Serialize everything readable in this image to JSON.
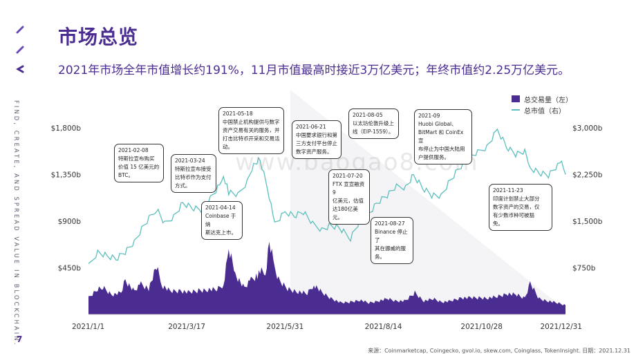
{
  "header": {
    "title": "市场总览",
    "subtitle": "2021年市场全年市值增长约191%，11月市值最高时接近3万亿美元；年终市值约2.25万亿美元。"
  },
  "sidebar": {
    "tagline": "FIND, CREATE, AND SPREAD VALUE IN BLOCKCHAIN."
  },
  "footer": {
    "page_number": "7",
    "source": "来源：Coinmarketcap, Coingecko, gvol.io, skew.com, Coinglass, TokenInsight. 日期：2021.12.31"
  },
  "watermark": "www.baogao8.com",
  "colors": {
    "brand": "#4b2c91",
    "volume": "#4b2c91",
    "market_cap": "#5cbfbd"
  },
  "chart_data": {
    "type": "line",
    "x_tick_labels": [
      "2021/1/1",
      "2021/3/17",
      "2021/5/31",
      "2021/8/14",
      "2021/10/28",
      "2021/12/31"
    ],
    "y_left_ticks": [
      "$450b",
      "$900b",
      "$1,350b",
      "$1,800b"
    ],
    "y_right_ticks": [
      "$750b",
      "$1,500b",
      "$2,250b",
      "$3,000b"
    ],
    "y_left_lim": [
      0,
      2000
    ],
    "y_right_lim": [
      0,
      3333
    ],
    "legend": [
      "总交易量（左）",
      "总市值（右）"
    ],
    "legend_position": "top-right",
    "grid": false,
    "series": [
      {
        "name": "总市值（右）",
        "axis": "right",
        "type": "line",
        "points": [
          [
            "2021-01-01",
            770
          ],
          [
            "2021-01-08",
            1010
          ],
          [
            "2021-01-15",
            950
          ],
          [
            "2021-01-22",
            900
          ],
          [
            "2021-01-29",
            1010
          ],
          [
            "2021-02-05",
            1160
          ],
          [
            "2021-02-12",
            1420
          ],
          [
            "2021-02-19",
            1620
          ],
          [
            "2021-02-22",
            1690
          ],
          [
            "2021-02-28",
            1450
          ],
          [
            "2021-03-07",
            1580
          ],
          [
            "2021-03-14",
            1800
          ],
          [
            "2021-03-21",
            1720
          ],
          [
            "2021-03-28",
            1690
          ],
          [
            "2021-04-04",
            1870
          ],
          [
            "2021-04-11",
            2070
          ],
          [
            "2021-04-14",
            2230
          ],
          [
            "2021-04-18",
            1960
          ],
          [
            "2021-04-25",
            1910
          ],
          [
            "2021-05-02",
            2140
          ],
          [
            "2021-05-07",
            2430
          ],
          [
            "2021-05-12",
            2500
          ],
          [
            "2021-05-19",
            1900
          ],
          [
            "2021-05-23",
            1450
          ],
          [
            "2021-05-31",
            1640
          ],
          [
            "2021-06-07",
            1580
          ],
          [
            "2021-06-14",
            1640
          ],
          [
            "2021-06-21",
            1450
          ],
          [
            "2021-06-28",
            1370
          ],
          [
            "2021-07-05",
            1440
          ],
          [
            "2021-07-12",
            1390
          ],
          [
            "2021-07-20",
            1230
          ],
          [
            "2021-07-27",
            1500
          ],
          [
            "2021-08-03",
            1620
          ],
          [
            "2021-08-10",
            1800
          ],
          [
            "2021-08-17",
            1910
          ],
          [
            "2021-08-24",
            2050
          ],
          [
            "2021-08-31",
            2050
          ],
          [
            "2021-09-06",
            2250
          ],
          [
            "2021-09-13",
            2040
          ],
          [
            "2021-09-20",
            1920
          ],
          [
            "2021-09-27",
            1900
          ],
          [
            "2021-10-04",
            2150
          ],
          [
            "2021-10-11",
            2350
          ],
          [
            "2021-10-18",
            2500
          ],
          [
            "2021-10-25",
            2600
          ],
          [
            "2021-11-01",
            2700
          ],
          [
            "2021-11-09",
            2980
          ],
          [
            "2021-11-16",
            2700
          ],
          [
            "2021-11-23",
            2580
          ],
          [
            "2021-11-30",
            2620
          ],
          [
            "2021-12-04",
            2350
          ],
          [
            "2021-12-11",
            2270
          ],
          [
            "2021-12-18",
            2230
          ],
          [
            "2021-12-25",
            2380
          ],
          [
            "2021-12-28",
            2440
          ],
          [
            "2021-12-31",
            2250
          ]
        ]
      },
      {
        "name": "总交易量（左）",
        "axis": "left",
        "type": "area",
        "points": [
          [
            "2021-01-01",
            160
          ],
          [
            "2021-01-08",
            250
          ],
          [
            "2021-01-12",
            260
          ],
          [
            "2021-01-19",
            190
          ],
          [
            "2021-01-26",
            210
          ],
          [
            "2021-01-29",
            330
          ],
          [
            "2021-02-05",
            220
          ],
          [
            "2021-02-10",
            290
          ],
          [
            "2021-02-16",
            250
          ],
          [
            "2021-02-22",
            460
          ],
          [
            "2021-02-26",
            280
          ],
          [
            "2021-03-05",
            220
          ],
          [
            "2021-03-12",
            230
          ],
          [
            "2021-03-19",
            210
          ],
          [
            "2021-03-26",
            230
          ],
          [
            "2021-04-02",
            240
          ],
          [
            "2021-04-09",
            240
          ],
          [
            "2021-04-14",
            290
          ],
          [
            "2021-04-18",
            630
          ],
          [
            "2021-04-23",
            390
          ],
          [
            "2021-04-30",
            250
          ],
          [
            "2021-05-05",
            330
          ],
          [
            "2021-05-10",
            380
          ],
          [
            "2021-05-12",
            420
          ],
          [
            "2021-05-16",
            390
          ],
          [
            "2021-05-19",
            700
          ],
          [
            "2021-05-23",
            450
          ],
          [
            "2021-05-27",
            310
          ],
          [
            "2021-06-03",
            240
          ],
          [
            "2021-06-10",
            220
          ],
          [
            "2021-06-17",
            200
          ],
          [
            "2021-06-22",
            290
          ],
          [
            "2021-06-29",
            200
          ],
          [
            "2021-07-06",
            150
          ],
          [
            "2021-07-13",
            110
          ],
          [
            "2021-07-20",
            120
          ],
          [
            "2021-07-27",
            140
          ],
          [
            "2021-08-03",
            110
          ],
          [
            "2021-08-10",
            130
          ],
          [
            "2021-08-17",
            150
          ],
          [
            "2021-08-24",
            130
          ],
          [
            "2021-08-31",
            130
          ],
          [
            "2021-09-07",
            210
          ],
          [
            "2021-09-14",
            130
          ],
          [
            "2021-09-21",
            150
          ],
          [
            "2021-09-28",
            120
          ],
          [
            "2021-10-05",
            130
          ],
          [
            "2021-10-12",
            160
          ],
          [
            "2021-10-19",
            160
          ],
          [
            "2021-10-26",
            160
          ],
          [
            "2021-11-02",
            160
          ],
          [
            "2021-11-09",
            170
          ],
          [
            "2021-11-16",
            200
          ],
          [
            "2021-11-23",
            190
          ],
          [
            "2021-11-30",
            160
          ],
          [
            "2021-12-04",
            300
          ],
          [
            "2021-12-11",
            150
          ],
          [
            "2021-12-18",
            130
          ],
          [
            "2021-12-25",
            110
          ],
          [
            "2021-12-31",
            90
          ]
        ]
      }
    ],
    "annotations": [
      {
        "date": "2021-02-08",
        "text": "2021-02-08\n特斯拉宣布购买\n价值 15 亿美元的\nBTC。"
      },
      {
        "date": "2021-03-24",
        "text": "2021-03-24\n特斯拉宣布接受\n比特币作为支付\n方式。"
      },
      {
        "date": "2021-04-14",
        "text": "2021-04-14\nCoinbase 于纳\n斯达克上市。"
      },
      {
        "date": "2021-05-18",
        "text": "2021-05-18\n中国禁止机构提供与数字\n资产交易有关的服务，并\n打击比特币开采和交易活\n动。"
      },
      {
        "date": "2021-06-21",
        "text": "2021-06-21\n中国要求银行和第\n三方支付平台停止\n数字资产服务。"
      },
      {
        "date": "2021-07-20",
        "text": "2021-07-20\nFTX 宣宣融资9\n亿美元，估值\n达180亿美元。"
      },
      {
        "date": "2021-08-05",
        "text": "2021-08-05\n以太坊伦敦升级上\n线（EIP-1559）。"
      },
      {
        "date": "2021-08-27",
        "text": "2021-08-27\nBinance 停止了\n其在挪威的服\n务。"
      },
      {
        "date": "2021-09",
        "text": "2021-09\nHuobi Global、\nBitMart 和 CoinEx 宣\n布停止为中国大陆用\n户提供服务。"
      },
      {
        "date": "2021-11-23",
        "text": "2021-11-23\n印度计划禁止大部分\n数字资产的交易，仅\n有少数币种可被豁\n免。"
      }
    ]
  }
}
